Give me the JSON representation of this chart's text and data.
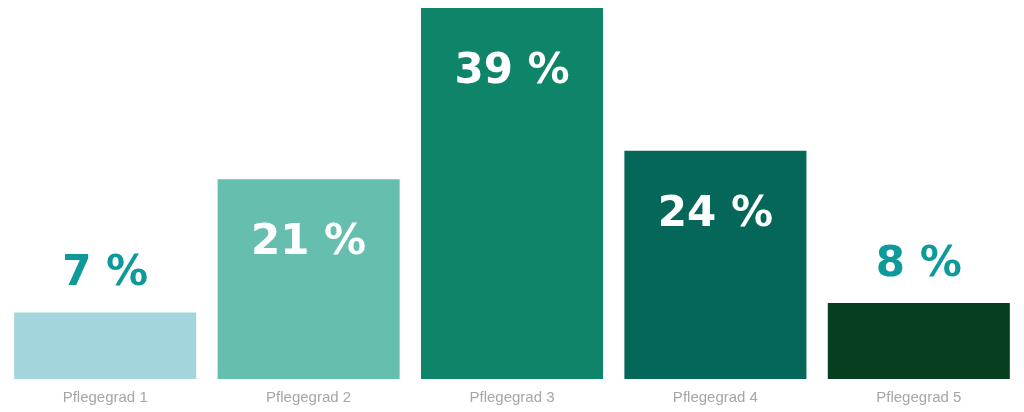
{
  "chart_data": {
    "type": "bar",
    "categories": [
      "Pflegegrad 1",
      "Pflegegrad 2",
      "Pflegegrad 3",
      "Pflegegrad 4",
      "Pflegegrad 5"
    ],
    "values": [
      7,
      21,
      39,
      24,
      8
    ],
    "colors": [
      "#a3d5dc",
      "#66bfae",
      "#0e8469",
      "#04675a",
      "#073e1f"
    ],
    "value_labels": [
      "7 %",
      "21 %",
      "39 %",
      "24 %",
      "8 %"
    ],
    "grid": false
  }
}
